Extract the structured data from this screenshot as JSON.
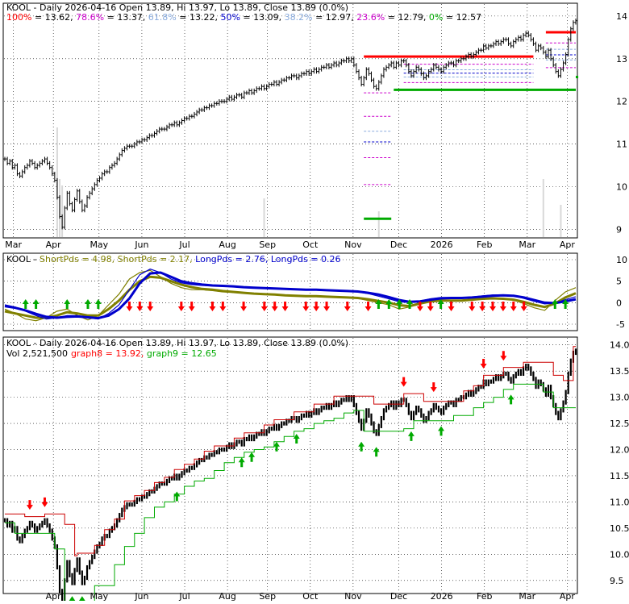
{
  "chart_data": [
    {
      "type": "candlestick",
      "header": {
        "title": "KOOL - Daily 2026-04-16 Open 13.89, Hi 13.97, Lo 13.89, Close 13.89 (0.0%)",
        "fib_levels": [
          {
            "label": "100%",
            "value": "13.62",
            "color": "#ff0000"
          },
          {
            "label": "78.6%",
            "value": "13.37",
            "color": "#cc00cc"
          },
          {
            "label": "61.8%",
            "value": "13.22",
            "color": "#88aadd"
          },
          {
            "label": "50%",
            "value": "13.09",
            "color": "#0000cc"
          },
          {
            "label": "38.2%",
            "value": "12.97",
            "color": "#88aadd"
          },
          {
            "label": "23.6%",
            "value": "12.79",
            "color": "#cc00cc"
          },
          {
            "label": "0%",
            "value": "12.57",
            "color": "#00aa00"
          }
        ]
      },
      "x_labels": [
        "Mar",
        "Apr",
        "May",
        "Jun",
        "Jul",
        "Aug",
        "Sep",
        "Oct",
        "Nov",
        "Dec",
        "2026",
        "Feb",
        "Mar",
        "Apr"
      ],
      "y_ticks": [
        9,
        10,
        11,
        12,
        13,
        14
      ],
      "ylim": [
        8.8,
        14.3
      ],
      "close": [
        10.65,
        10.55,
        10.6,
        10.45,
        10.5,
        10.3,
        10.25,
        10.35,
        10.45,
        10.5,
        10.6,
        10.55,
        10.45,
        10.5,
        10.55,
        10.6,
        10.65,
        10.55,
        10.45,
        10.3,
        10.15,
        9.75,
        9.3,
        9.05,
        9.5,
        9.85,
        9.6,
        9.45,
        9.7,
        9.9,
        9.65,
        9.45,
        9.55,
        9.75,
        9.85,
        9.95,
        10.05,
        10.15,
        10.2,
        10.3,
        10.35,
        10.35,
        10.45,
        10.5,
        10.55,
        10.65,
        10.75,
        10.85,
        10.9,
        10.95,
        10.95,
        10.95,
        11.0,
        11.05,
        11.05,
        11.1,
        11.1,
        11.15,
        11.2,
        11.2,
        11.25,
        11.3,
        11.35,
        11.35,
        11.35,
        11.4,
        11.45,
        11.45,
        11.5,
        11.45,
        11.5,
        11.55,
        11.6,
        11.6,
        11.65,
        11.65,
        11.7,
        11.75,
        11.8,
        11.8,
        11.85,
        11.85,
        11.9,
        11.9,
        11.95,
        11.95,
        12.0,
        12.0,
        12.0,
        12.05,
        12.1,
        12.05,
        12.1,
        12.15,
        12.15,
        12.1,
        12.2,
        12.2,
        12.25,
        12.2,
        12.25,
        12.3,
        12.3,
        12.35,
        12.3,
        12.35,
        12.4,
        12.4,
        12.45,
        12.4,
        12.45,
        12.5,
        12.5,
        12.55,
        12.55,
        12.6,
        12.6,
        12.55,
        12.6,
        12.65,
        12.65,
        12.7,
        12.65,
        12.7,
        12.75,
        12.7,
        12.75,
        12.8,
        12.8,
        12.85,
        12.8,
        12.85,
        12.9,
        12.85,
        12.9,
        12.95,
        12.95,
        13.0,
        12.95,
        13.0,
        12.85,
        12.7,
        12.55,
        12.4,
        12.55,
        12.75,
        12.65,
        12.5,
        12.35,
        12.3,
        12.45,
        12.6,
        12.75,
        12.8,
        12.85,
        12.9,
        12.8,
        12.9,
        12.85,
        12.95,
        12.95,
        12.85,
        12.7,
        12.6,
        12.7,
        12.8,
        12.75,
        12.65,
        12.55,
        12.6,
        12.7,
        12.75,
        12.85,
        12.8,
        12.75,
        12.7,
        12.8,
        12.85,
        12.9,
        12.9,
        12.85,
        12.95,
        12.95,
        13.0,
        13.0,
        13.05,
        13.1,
        13.05,
        13.1,
        13.15,
        13.2,
        13.2,
        13.3,
        13.25,
        13.3,
        13.3,
        13.35,
        13.4,
        13.35,
        13.4,
        13.45,
        13.45,
        13.35,
        13.3,
        13.4,
        13.45,
        13.5,
        13.45,
        13.55,
        13.6,
        13.55,
        13.45,
        13.35,
        13.2,
        13.3,
        13.25,
        13.15,
        13.05,
        13.2,
        13.0,
        12.85,
        12.7,
        12.6,
        12.75,
        12.9,
        13.1,
        13.45,
        13.7,
        13.85,
        13.89
      ],
      "volume_spikes": [
        {
          "i": 21,
          "v": 0.85
        },
        {
          "i": 22,
          "v": 0.45
        },
        {
          "i": 23,
          "v": 0.4
        },
        {
          "i": 104,
          "v": 0.3
        },
        {
          "i": 150,
          "v": 0.2
        },
        {
          "i": 216,
          "v": 0.45
        },
        {
          "i": 223,
          "v": 0.25
        }
      ],
      "fib_lines": {
        "high": 13.62,
        "low": 12.57,
        "swing_high": 13.05,
        "swing_low": 12.27
      }
    },
    {
      "type": "line",
      "header": {
        "title": "KOOL - ShortPds = 4.98, ShortPds = 2.17, LongPds = 2.76, LongPds = 0.26",
        "items": [
          {
            "text": "KOOL - ",
            "color": "#000000"
          },
          {
            "text": "ShortPds = 4.98, ",
            "color": "#808000"
          },
          {
            "text": "ShortPds = 2.17, ",
            "color": "#808000"
          },
          {
            "text": "LongPds = 2.76, ",
            "color": "#0000cc"
          },
          {
            "text": "LongPds = 0.26",
            "color": "#0000cc"
          }
        ]
      },
      "y_ticks": [
        10,
        5,
        0,
        -5
      ],
      "ylim": [
        -6.5,
        11.5
      ],
      "series": [
        {
          "values": [
            -1.5,
            -2.5,
            -3.8,
            -4.2,
            -3.5,
            -2.0,
            -1.5,
            -3.0,
            -4.0,
            -3.0,
            -0.5,
            2.0,
            5.5,
            7.0,
            7.5,
            6.0,
            4.5,
            3.5,
            3.0,
            3.0,
            2.8,
            2.5,
            2.4,
            2.2,
            2.0,
            2.0,
            1.8,
            1.6,
            1.5,
            1.5,
            1.4,
            1.3,
            1.3,
            1.2,
            1.0,
            0.5,
            0.0,
            -0.5,
            -1.5,
            -1.0,
            0.0,
            0.5,
            0.6,
            0.4,
            0.5,
            0.8,
            1.0,
            1.1,
            0.9,
            0.6,
            -0.2,
            -1.2,
            -1.8,
            0.5,
            2.5,
            3.5
          ]
        },
        {
          "values": [
            -2.0,
            -2.5,
            -3.0,
            -3.5,
            -3.5,
            -3.0,
            -2.2,
            -2.5,
            -3.0,
            -3.0,
            -1.5,
            0.5,
            3.0,
            5.0,
            6.0,
            5.8,
            5.0,
            4.2,
            3.6,
            3.2,
            3.0,
            2.7,
            2.5,
            2.3,
            2.1,
            2.0,
            1.9,
            1.7,
            1.6,
            1.5,
            1.5,
            1.4,
            1.3,
            1.2,
            1.1,
            0.8,
            0.4,
            0.0,
            -0.6,
            -0.8,
            -0.2,
            0.3,
            0.5,
            0.5,
            0.5,
            0.7,
            0.9,
            1.0,
            0.9,
            0.7,
            0.2,
            -0.5,
            -1.0,
            -0.2,
            1.2,
            2.2
          ]
        },
        {
          "values": [
            -0.5,
            -1.0,
            -2.0,
            -3.0,
            -3.8,
            -3.5,
            -3.0,
            -3.0,
            -3.5,
            -3.8,
            -2.5,
            -0.5,
            3.0,
            6.5,
            7.8,
            7.0,
            5.5,
            4.6,
            4.2,
            4.0,
            3.9,
            3.8,
            3.7,
            3.6,
            3.4,
            3.3,
            3.2,
            3.1,
            3.0,
            3.0,
            2.9,
            2.8,
            2.8,
            2.7,
            2.5,
            2.1,
            1.5,
            0.9,
            0.2,
            0.0,
            0.4,
            0.9,
            1.2,
            1.2,
            1.2,
            1.3,
            1.6,
            1.8,
            1.8,
            1.6,
            1.0,
            0.3,
            -0.3,
            -0.1,
            0.7,
            1.4
          ]
        },
        {
          "values": [
            -0.8,
            -1.2,
            -1.8,
            -2.6,
            -3.3,
            -3.5,
            -3.3,
            -3.2,
            -3.4,
            -3.6,
            -3.0,
            -1.5,
            1.0,
            4.5,
            6.8,
            7.0,
            6.0,
            5.0,
            4.5,
            4.2,
            4.0,
            3.9,
            3.8,
            3.6,
            3.5,
            3.4,
            3.3,
            3.2,
            3.1,
            3.0,
            3.0,
            2.9,
            2.8,
            2.7,
            2.6,
            2.3,
            1.9,
            1.3,
            0.6,
            0.2,
            0.3,
            0.7,
            1.0,
            1.1,
            1.1,
            1.2,
            1.4,
            1.6,
            1.7,
            1.6,
            1.2,
            0.6,
            0.0,
            -0.1,
            0.3,
            0.8
          ]
        }
      ],
      "up_arrows": [
        2,
        3,
        6,
        8,
        9,
        36,
        37,
        38,
        39,
        42,
        53,
        54
      ],
      "down_arrows": [
        12,
        13,
        14,
        17,
        18,
        20,
        21,
        23,
        25,
        26,
        27,
        29,
        30,
        31,
        33,
        35,
        40,
        41,
        43,
        45,
        46,
        47,
        48,
        49,
        50
      ]
    },
    {
      "type": "candlestick",
      "header": {
        "title": "KOOL - Daily 2026-04-16 Open 13.89, Hi 13.97, Lo 13.89, Close 13.89 (0.0%)",
        "vol_text": "Vol 2,521,500",
        "graph8_label": "graph8 = 13.92",
        "graph9_label": "graph9 = 12.65"
      },
      "x_labels": [
        "Apr",
        "May",
        "Jun",
        "Jul",
        "Aug",
        "Sep",
        "Oct",
        "Nov",
        "Dec",
        "2026",
        "Feb",
        "Mar",
        "Apr"
      ],
      "y_ticks": [
        9.5,
        10.0,
        10.5,
        11.0,
        11.5,
        12.0,
        12.5,
        13.0,
        13.5,
        14.0
      ],
      "ylim": [
        9.25,
        14.15
      ]
    }
  ]
}
